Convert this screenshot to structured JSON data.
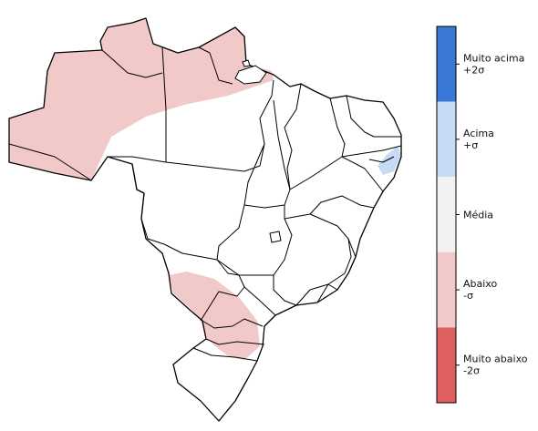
{
  "legend": {
    "categories": [
      {
        "line1": "Muito acima",
        "line2": "+2σ",
        "color": "#3a78d8"
      },
      {
        "line1": "Acima",
        "line2": "+σ",
        "color": "#c7dbf5"
      },
      {
        "line1": "Média",
        "line2": "",
        "color": "#f2f2f2"
      },
      {
        "line1": "Abaixo",
        "line2": "-σ",
        "color": "#f2c9c9"
      },
      {
        "line1": "Muito abaixo",
        "line2": "-2σ",
        "color": "#de5f5f"
      }
    ]
  },
  "colors": {
    "land": "#ffffff",
    "border": "#000000",
    "below": "#f2c9c9",
    "above": "#c7dbf5"
  }
}
